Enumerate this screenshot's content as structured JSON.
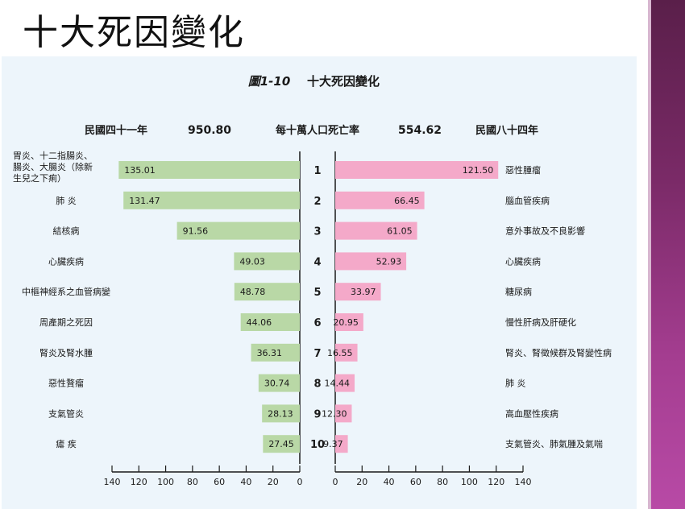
{
  "slide_title": "十大死因變化",
  "chart_data": {
    "type": "bar",
    "title": "十大死因變化",
    "figure_label": "圖1-10",
    "left_year": "民國四十一年",
    "left_total": "950.80",
    "center_label": "每十萬人口死亡率",
    "right_total": "554.62",
    "right_year": "民國八十四年",
    "ranks": [
      "1",
      "2",
      "3",
      "4",
      "5",
      "6",
      "7",
      "8",
      "9",
      "10"
    ],
    "series": [
      {
        "name": "民國四十一年",
        "color": "#b9d8a6",
        "categories": [
          "胃炎、十二指腸炎、腸炎、大腸炎（除新生兒之下痢）",
          "肺 炎",
          "結核病",
          "心臟疾病",
          "中樞神經系之血管病變",
          "周產期之死因",
          "腎炎及腎水腫",
          "惡性贅瘤",
          "支氣管炎",
          "瘧 疾"
        ],
        "values": [
          135.01,
          131.47,
          91.56,
          49.03,
          48.78,
          44.06,
          36.31,
          30.74,
          28.13,
          27.45
        ],
        "labels": [
          "135.01",
          "131.47",
          "91.56",
          "49.03",
          "48.78",
          "44.06",
          "36.31",
          "30.74",
          "28.13",
          "27.45"
        ]
      },
      {
        "name": "民國八十四年",
        "color": "#f4a9c9",
        "categories": [
          "惡性腫瘤",
          "腦血管疾病",
          "意外事故及不良影響",
          "心臟疾病",
          "糖尿病",
          "慢性肝病及肝硬化",
          "腎炎、腎徵候群及腎變性病",
          "肺 炎",
          "高血壓性疾病",
          "支氣管炎、肺氣腫及氣喘"
        ],
        "values": [
          121.5,
          66.45,
          61.05,
          52.93,
          33.97,
          20.95,
          16.55,
          14.44,
          12.3,
          9.37
        ],
        "labels": [
          "121.50",
          "66.45",
          "61.05",
          "52.93",
          "33.97",
          "20.95",
          "16.55",
          "14.44",
          "12.30",
          "9.37"
        ]
      }
    ],
    "left_ticks": [
      "140",
      "120",
      "100",
      "80",
      "60",
      "40",
      "20",
      "0"
    ],
    "right_ticks": [
      "0",
      "20",
      "40",
      "60",
      "80",
      "100",
      "120",
      "140"
    ],
    "xlim": [
      0,
      140
    ]
  }
}
